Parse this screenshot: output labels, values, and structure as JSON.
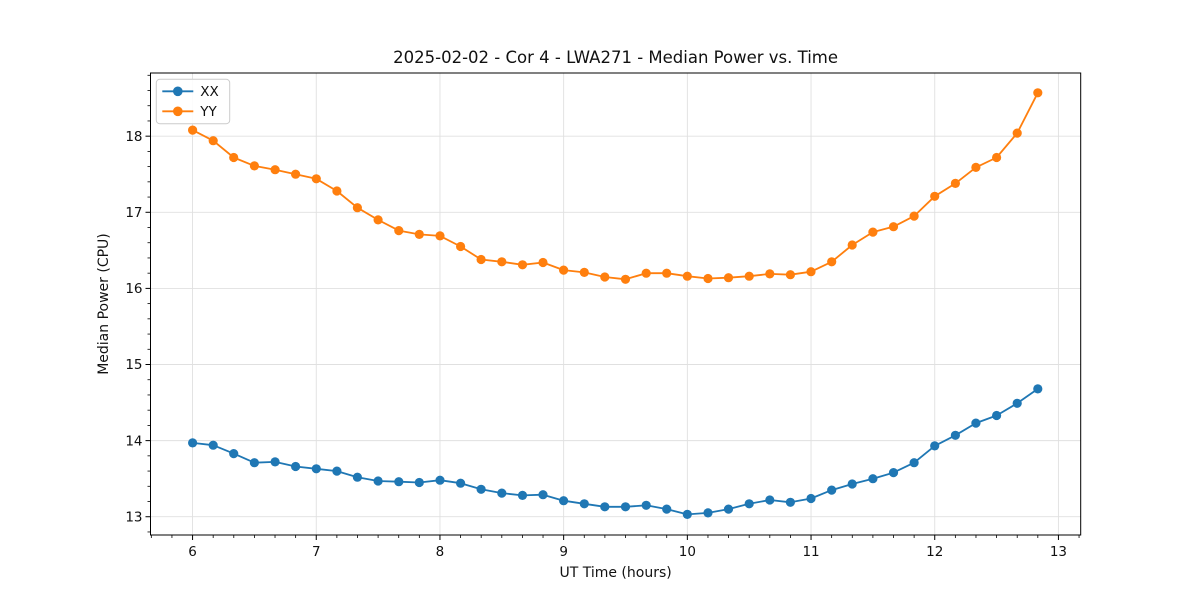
{
  "chart_data": {
    "type": "line",
    "title": "2025-02-02 - Cor 4 - LWA271 - Median Power vs. Time",
    "xlabel": "UT Time (hours)",
    "ylabel": "Median Power (CPU)",
    "xlim": [
      5.66,
      13.18
    ],
    "ylim": [
      12.76,
      18.83
    ],
    "x_major_ticks": [
      6,
      7,
      8,
      9,
      10,
      11,
      12,
      13
    ],
    "y_major_ticks": [
      13,
      14,
      15,
      16,
      17,
      18
    ],
    "x_minor_step": 0.166667,
    "y_minor_step": 0.2,
    "grid": "major",
    "grid_color": "#e0e0e0",
    "legend_position": "upper-left",
    "x": [
      6.0,
      6.167,
      6.333,
      6.5,
      6.667,
      6.833,
      7.0,
      7.167,
      7.333,
      7.5,
      7.667,
      7.833,
      8.0,
      8.167,
      8.333,
      8.5,
      8.667,
      8.833,
      9.0,
      9.167,
      9.333,
      9.5,
      9.667,
      9.833,
      10.0,
      10.167,
      10.333,
      10.5,
      10.667,
      10.833,
      11.0,
      11.167,
      11.333,
      11.5,
      11.667,
      11.833,
      12.0,
      12.167,
      12.333,
      12.5,
      12.667,
      12.833
    ],
    "series": [
      {
        "name": "XX",
        "color": "#1f77b4",
        "values": [
          13.97,
          13.94,
          13.83,
          13.71,
          13.72,
          13.66,
          13.63,
          13.6,
          13.52,
          13.47,
          13.46,
          13.45,
          13.48,
          13.44,
          13.36,
          13.31,
          13.28,
          13.29,
          13.21,
          13.17,
          13.13,
          13.13,
          13.15,
          13.1,
          13.03,
          13.05,
          13.1,
          13.17,
          13.22,
          13.19,
          13.24,
          13.35,
          13.43,
          13.5,
          13.58,
          13.71,
          13.93,
          14.07,
          14.23,
          14.33,
          14.49,
          14.68
        ]
      },
      {
        "name": "YY",
        "color": "#ff7f0e",
        "values": [
          18.08,
          17.94,
          17.72,
          17.61,
          17.56,
          17.5,
          17.44,
          17.28,
          17.06,
          16.9,
          16.76,
          16.71,
          16.69,
          16.55,
          16.38,
          16.35,
          16.31,
          16.34,
          16.24,
          16.21,
          16.15,
          16.12,
          16.2,
          16.2,
          16.16,
          16.13,
          16.14,
          16.16,
          16.19,
          16.18,
          16.22,
          16.35,
          16.57,
          16.74,
          16.81,
          16.95,
          17.21,
          17.38,
          17.59,
          17.72,
          18.04,
          18.57
        ]
      }
    ]
  }
}
